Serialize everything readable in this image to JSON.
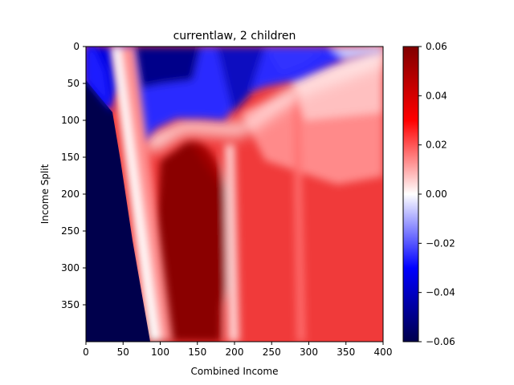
{
  "chart_data": {
    "type": "heatmap",
    "title": "currentlaw, 2 children",
    "xlabel": "Combined Income",
    "ylabel": "Income Split",
    "xlim": [
      0,
      400
    ],
    "ylim": [
      400,
      0
    ],
    "x_ticks": [
      "0",
      "50",
      "100",
      "150",
      "200",
      "250",
      "300",
      "350",
      "400"
    ],
    "y_ticks": [
      "0",
      "50",
      "100",
      "150",
      "200",
      "250",
      "300",
      "350"
    ],
    "colormap": "seismic",
    "colors": {
      "min": "#00004c",
      "low": "#0000ff",
      "mid": "#ffffff",
      "high": "#ff0000",
      "max": "#800000"
    },
    "colorbar": {
      "range": [
        -0.06,
        0.06
      ],
      "ticks": [
        "−0.06",
        "−0.04",
        "−0.02",
        "0.00",
        "0.02",
        "0.04",
        "0.06"
      ]
    },
    "regions": [
      {
        "name": "low-income-diagonal",
        "value": -0.06
      },
      {
        "name": "top-band",
        "value": -0.04
      },
      {
        "name": "central-core",
        "value": 0.06
      },
      {
        "name": "right-region",
        "value": 0.03
      }
    ]
  }
}
